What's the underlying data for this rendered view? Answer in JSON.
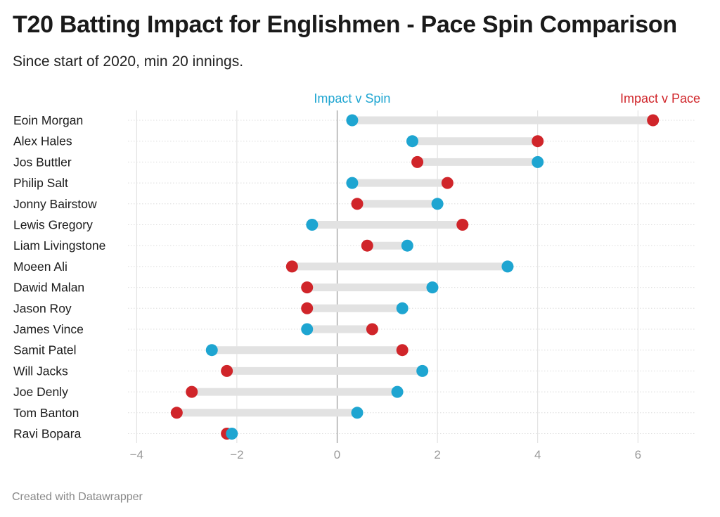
{
  "title": "T20 Batting Impact for Englishmen - Pace Spin Comparison",
  "subtitle": "Since start of 2020, min 20 innings.",
  "footer": "Created with Datawrapper",
  "colors": {
    "spin": "#1ea5d1",
    "pace": "#d0252a",
    "bar": "#e2e2e2",
    "grid": "#dddddd",
    "zero": "#999999",
    "tick": "#999999"
  },
  "chart_data": {
    "type": "dot-range",
    "series": [
      {
        "key": "spin",
        "name": "Impact v Spin"
      },
      {
        "key": "pace",
        "name": "Impact v Pace"
      }
    ],
    "xlim": [
      -4.3,
      7.2
    ],
    "xticks": [
      -4,
      -2,
      0,
      2,
      4,
      6
    ],
    "xtick_labels": [
      "−4",
      "−2",
      "0",
      "2",
      "4",
      "6"
    ],
    "grid": true,
    "legend": "top, labels above first row",
    "rows": [
      {
        "name": "Eoin Morgan",
        "spin": 0.3,
        "pace": 6.3
      },
      {
        "name": "Alex Hales",
        "spin": 1.5,
        "pace": 4.0
      },
      {
        "name": "Jos Buttler",
        "spin": 4.0,
        "pace": 1.6
      },
      {
        "name": "Philip Salt",
        "spin": 0.3,
        "pace": 2.2
      },
      {
        "name": "Jonny Bairstow",
        "spin": 2.0,
        "pace": 0.4
      },
      {
        "name": "Lewis Gregory",
        "spin": -0.5,
        "pace": 2.5
      },
      {
        "name": "Liam Livingstone",
        "spin": 1.4,
        "pace": 0.6
      },
      {
        "name": "Moeen Ali",
        "spin": 3.4,
        "pace": -0.9
      },
      {
        "name": "Dawid Malan",
        "spin": 1.9,
        "pace": -0.6
      },
      {
        "name": "Jason Roy",
        "spin": 1.3,
        "pace": -0.6
      },
      {
        "name": "James Vince",
        "spin": -0.6,
        "pace": 0.7
      },
      {
        "name": "Samit Patel",
        "spin": -2.5,
        "pace": 1.3
      },
      {
        "name": "Will Jacks",
        "spin": 1.7,
        "pace": -2.2
      },
      {
        "name": "Joe Denly",
        "spin": 1.2,
        "pace": -2.9
      },
      {
        "name": "Tom Banton",
        "spin": 0.4,
        "pace": -3.2
      },
      {
        "name": "Ravi Bopara",
        "spin": -2.1,
        "pace": -2.2
      }
    ]
  }
}
